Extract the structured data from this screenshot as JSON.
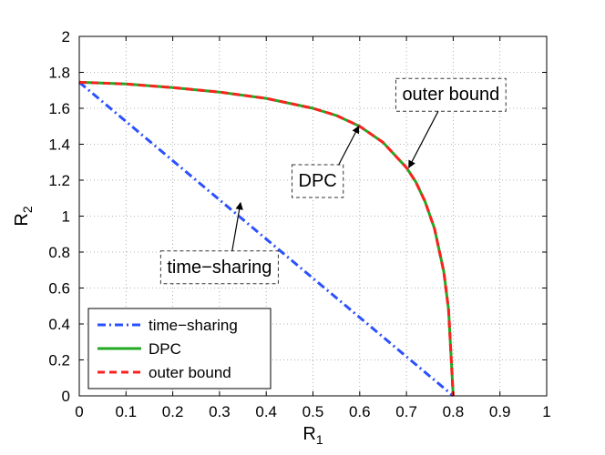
{
  "chart_data": {
    "type": "line",
    "xlabel": "R",
    "xlabel_sub": "1",
    "ylabel": "R",
    "ylabel_sub": "2",
    "xlim": [
      0,
      1
    ],
    "ylim": [
      0,
      2
    ],
    "xticks": [
      0,
      0.1,
      0.2,
      0.3,
      0.4,
      0.5,
      0.6,
      0.7,
      0.8,
      0.9,
      1
    ],
    "xtick_labels": [
      "0",
      "0.1",
      "0.2",
      "0.3",
      "0.4",
      "0.5",
      "0.6",
      "0.7",
      "0.8",
      "0.9",
      "1"
    ],
    "yticks": [
      0,
      0.2,
      0.4,
      0.6,
      0.8,
      1,
      1.2,
      1.4,
      1.6,
      1.8,
      2
    ],
    "ytick_labels": [
      "0",
      "0.2",
      "0.4",
      "0.6",
      "0.8",
      "1",
      "1.2",
      "1.4",
      "1.6",
      "1.8",
      "2"
    ],
    "grid": true,
    "legend_position": "bottom-left",
    "series": [
      {
        "name": "time−sharing",
        "color": "#2b50ff",
        "style": "dashdot",
        "x": [
          0,
          0.8
        ],
        "y": [
          1.745,
          0
        ]
      },
      {
        "name": "DPC",
        "color": "#22a822",
        "style": "solid",
        "x": [
          0,
          0.1,
          0.2,
          0.3,
          0.4,
          0.5,
          0.55,
          0.6,
          0.65,
          0.7,
          0.72,
          0.74,
          0.76,
          0.78,
          0.79,
          0.8
        ],
        "y": [
          1.745,
          1.735,
          1.715,
          1.69,
          1.655,
          1.6,
          1.56,
          1.5,
          1.41,
          1.27,
          1.19,
          1.08,
          0.93,
          0.69,
          0.48,
          0
        ]
      },
      {
        "name": "outer bound",
        "color": "#ff2020",
        "style": "dashed",
        "x": [
          0,
          0.1,
          0.2,
          0.3,
          0.4,
          0.5,
          0.55,
          0.6,
          0.65,
          0.7,
          0.72,
          0.74,
          0.76,
          0.78,
          0.79,
          0.8
        ],
        "y": [
          1.745,
          1.735,
          1.715,
          1.69,
          1.655,
          1.6,
          1.56,
          1.5,
          1.41,
          1.27,
          1.19,
          1.08,
          0.93,
          0.69,
          0.48,
          0
        ]
      }
    ],
    "annotations": [
      {
        "text": "outer bound",
        "box_center": [
          0.795,
          1.68
        ],
        "arrow_to": [
          0.705,
          1.27
        ]
      },
      {
        "text": "DPC",
        "box_center": [
          0.51,
          1.2
        ],
        "arrow_to": [
          0.598,
          1.5
        ]
      },
      {
        "text": "time−sharing",
        "box_center": [
          0.3,
          0.72
        ],
        "arrow_to": [
          0.345,
          1.075
        ]
      }
    ]
  }
}
